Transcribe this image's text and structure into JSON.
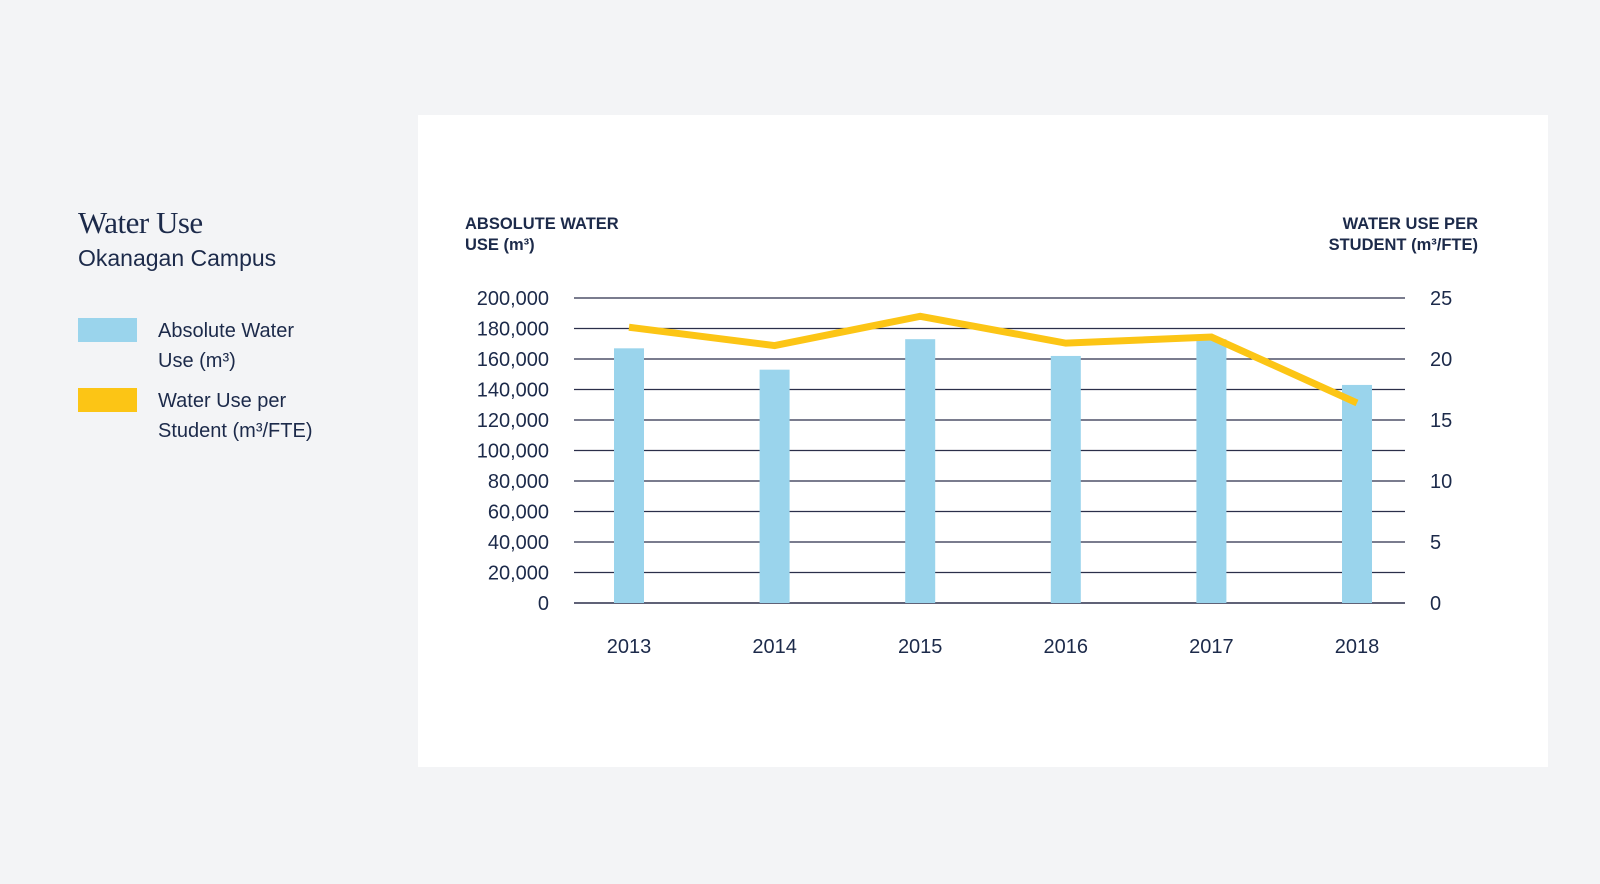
{
  "heading": {
    "title": "Water Use",
    "subtitle": "Okanagan Campus"
  },
  "legend": [
    {
      "label_line1": "Absolute Water",
      "label_line2": "Use (m³)",
      "color": "#9ad4ec"
    },
    {
      "label_line1": "Water Use per",
      "label_line2": "Student (m³/FTE)",
      "color": "#fcc515"
    }
  ],
  "chart_data": {
    "type": "bar",
    "categories": [
      "2013",
      "2014",
      "2015",
      "2016",
      "2017",
      "2018"
    ],
    "series": [
      {
        "name": "Absolute Water Use (m³)",
        "type": "bar",
        "axis": "left",
        "values": [
          167000,
          153000,
          173000,
          162000,
          173000,
          143000
        ],
        "color": "#9ad4ec"
      },
      {
        "name": "Water Use per Student (m³/FTE)",
        "type": "line",
        "axis": "right",
        "values": [
          22.6,
          21.1,
          23.5,
          21.3,
          21.8,
          16.4
        ],
        "color": "#fcc515"
      }
    ],
    "left_axis": {
      "label_line1": "ABSOLUTE WATER",
      "label_line2": "USE (m³)",
      "ylim": [
        0,
        200000
      ],
      "ticks": [
        "0",
        "20,000",
        "40,000",
        "60,000",
        "80,000",
        "100,000",
        "120,000",
        "140,000",
        "160,000",
        "180,000",
        "200,000"
      ]
    },
    "right_axis": {
      "label_line1": "WATER USE PER",
      "label_line2": "STUDENT (m³/FTE)",
      "ylim": [
        0,
        25
      ],
      "ticks": [
        "0",
        "5",
        "10",
        "15",
        "20",
        "25"
      ]
    },
    "grid": true,
    "grid_color": "#2b2f4a"
  }
}
